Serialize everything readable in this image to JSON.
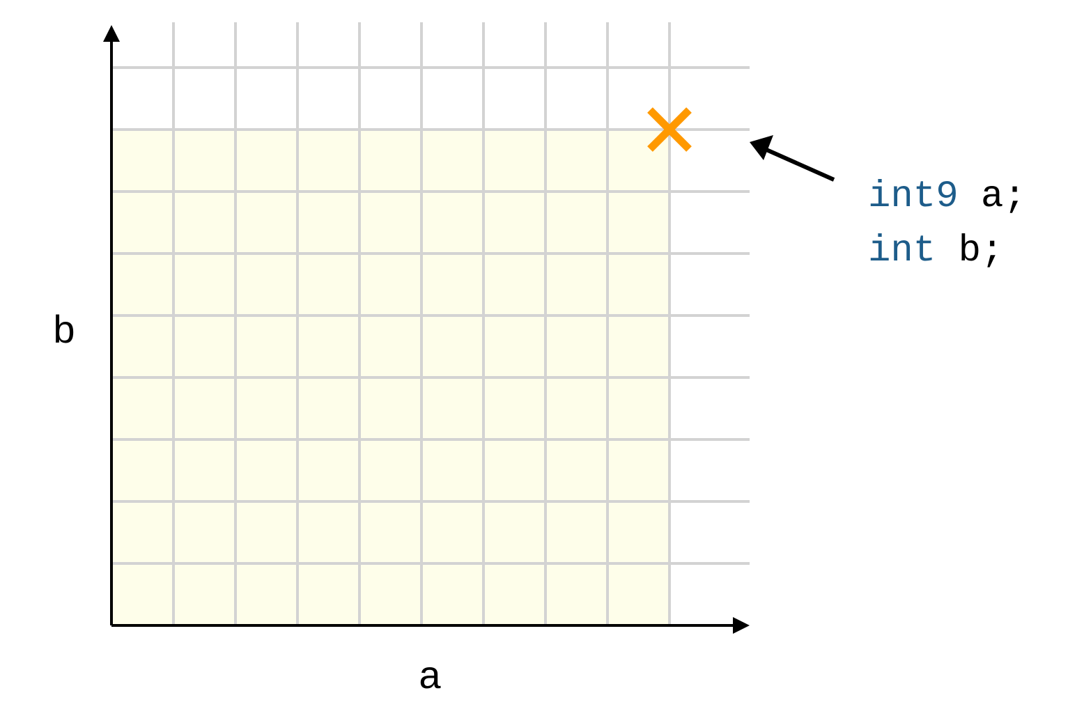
{
  "chart_data": {
    "type": "diagram",
    "xlabel": "a",
    "ylabel": "b",
    "xlim": [
      0,
      9
    ],
    "ylim": [
      0,
      9
    ],
    "grid": true,
    "shaded_region": {
      "x": [
        0,
        9
      ],
      "y": [
        0,
        8
      ]
    },
    "marker": {
      "x": 9,
      "y": 8,
      "symbol": "cross"
    }
  },
  "annotation": {
    "lines": [
      {
        "type_keyword": "int9",
        "rest": " a;"
      },
      {
        "type_keyword": "int",
        "rest": " b;"
      }
    ]
  },
  "colors": {
    "shade": "#fefeea",
    "grid": "#d3d3d3",
    "axis": "#000000",
    "marker": "#ff9900",
    "keyword": "#1d5c8a",
    "text": "#000000"
  }
}
